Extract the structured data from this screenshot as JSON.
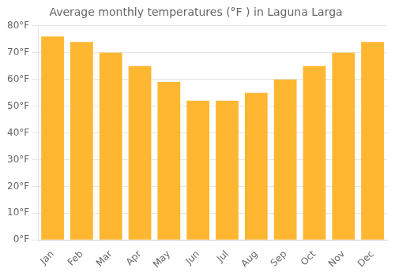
{
  "chart_data": {
    "type": "bar",
    "title": "Average monthly temperatures (°F ) in Laguna Larga",
    "categories": [
      "Jan",
      "Feb",
      "Mar",
      "Apr",
      "May",
      "Jun",
      "Jul",
      "Aug",
      "Sep",
      "Oct",
      "Nov",
      "Dec"
    ],
    "values": [
      76,
      74,
      70,
      65,
      59,
      52,
      52,
      55,
      60,
      65,
      70,
      74
    ],
    "color": "#FFB732",
    "ylim": [
      0,
      80
    ],
    "yticks": [
      {
        "value": 0,
        "label": "0°F"
      },
      {
        "value": 10,
        "label": "10°F"
      },
      {
        "value": 20,
        "label": "20°F"
      },
      {
        "value": 30,
        "label": "30°F"
      },
      {
        "value": 40,
        "label": "40°F"
      },
      {
        "value": 50,
        "label": "50°F"
      },
      {
        "value": 60,
        "label": "60°F"
      },
      {
        "value": 70,
        "label": "70°F"
      },
      {
        "value": 80,
        "label": "80°F"
      }
    ],
    "grid": true
  }
}
